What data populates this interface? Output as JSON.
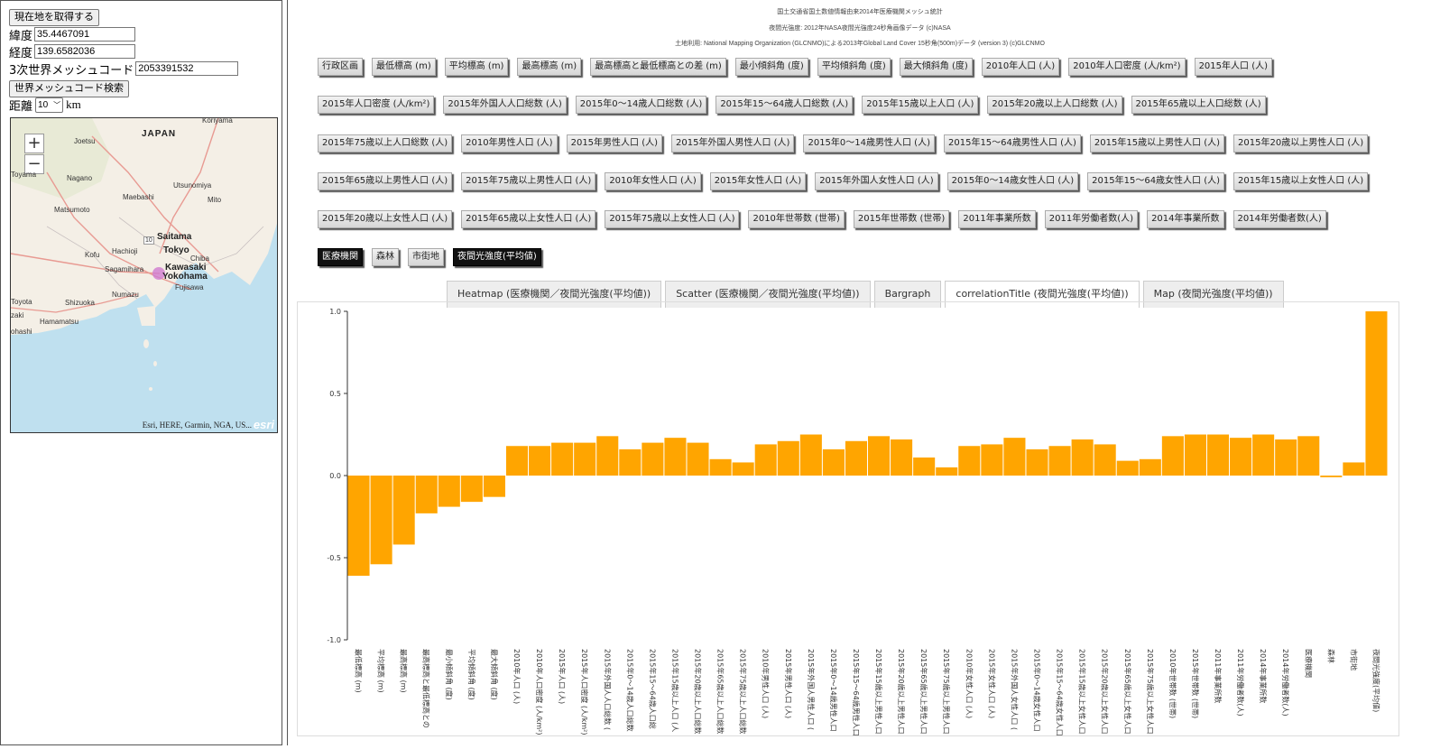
{
  "left": {
    "get_location_label": "現在地を取得する",
    "lat_label": "緯度",
    "lat_value": "35.4467091",
    "lng_label": "経度",
    "lng_value": "139.6582036",
    "mesh_label": "3次世界メッシュコード",
    "mesh_value": "2053391532",
    "search_label": "世界メッシュコード検索",
    "distance_label": "距離",
    "distance_value": "10",
    "distance_unit": "km"
  },
  "map": {
    "zoom_in": "+",
    "zoom_out": "−",
    "attribution": "Esri, HERE, Garmin, NGA, US...",
    "logo": "esri",
    "cities": [
      {
        "name": "Koriyama",
        "big": false
      },
      {
        "name": "JAPAN",
        "big": true
      },
      {
        "name": "Joetsu",
        "big": false
      },
      {
        "name": "Toyama",
        "big": false
      },
      {
        "name": "Nagano",
        "big": false
      },
      {
        "name": "Utsunomiya",
        "big": false
      },
      {
        "name": "Maebashi",
        "big": false
      },
      {
        "name": "Mito",
        "big": false
      },
      {
        "name": "Matsumoto",
        "big": false
      },
      {
        "name": "Saitama",
        "big": true
      },
      {
        "name": "Tokyo",
        "big": true
      },
      {
        "name": "Kofu",
        "big": false
      },
      {
        "name": "Hachioji",
        "big": false
      },
      {
        "name": "Chiba",
        "big": false
      },
      {
        "name": "Sagamihara",
        "big": false
      },
      {
        "name": "Kawasaki",
        "big": true
      },
      {
        "name": "Yokohama",
        "big": true
      },
      {
        "name": "Fujisawa",
        "big": false
      },
      {
        "name": "Toyota",
        "big": false
      },
      {
        "name": "Shizuoka",
        "big": false
      },
      {
        "name": "Numazu",
        "big": false
      },
      {
        "name": "zaki",
        "big": false
      },
      {
        "name": "Hamamatsu",
        "big": false
      },
      {
        "name": "ohashi",
        "big": false
      },
      {
        "name": "10",
        "big": false
      }
    ]
  },
  "credits": [
    "国土交通省国土数値情報由来2014年医療機関メッシュ統計",
    "夜間光強度: 2012年NASA夜間光強度24秒角画像データ (c)NASA",
    "土地利用: National Mapping Organization (GLCNMO)による2013年Global Land Cover 15秒角(500m)データ (version 3) (c)GLCNMO"
  ],
  "button_rows": [
    [
      "行政区画",
      "最低標高 (m)",
      "平均標高 (m)",
      "最高標高 (m)",
      "最高標高と最低標高との差 (m)",
      "最小傾斜角 (度)",
      "平均傾斜角 (度)",
      "最大傾斜角 (度)",
      "2010年人口 (人)",
      "2010年人口密度 (人/km²)",
      "2015年人口 (人)"
    ],
    [
      "2015年人口密度 (人/km²)",
      "2015年外国人人口総数 (人)",
      "2015年0～14歳人口総数 (人)",
      "2015年15～64歳人口総数 (人)",
      "2015年15歳以上人口 (人)",
      "2015年20歳以上人口総数 (人)",
      "2015年65歳以上人口総数 (人)"
    ],
    [
      "2015年75歳以上人口総数 (人)",
      "2010年男性人口 (人)",
      "2015年男性人口 (人)",
      "2015年外国人男性人口 (人)",
      "2015年0～14歳男性人口 (人)",
      "2015年15～64歳男性人口 (人)",
      "2015年15歳以上男性人口 (人)",
      "2015年20歳以上男性人口 (人)"
    ],
    [
      "2015年65歳以上男性人口 (人)",
      "2015年75歳以上男性人口 (人)",
      "2010年女性人口 (人)",
      "2015年女性人口 (人)",
      "2015年外国人女性人口 (人)",
      "2015年0～14歳女性人口 (人)",
      "2015年15～64歳女性人口 (人)",
      "2015年15歳以上女性人口 (人)"
    ],
    [
      "2015年20歳以上女性人口 (人)",
      "2015年65歳以上女性人口 (人)",
      "2015年75歳以上女性人口 (人)",
      "2010年世帯数 (世帯)",
      "2015年世帯数 (世帯)",
      "2011年事業所数",
      "2011年労働者数(人)",
      "2014年事業所数",
      "2014年労働者数(人)"
    ]
  ],
  "selected_buttons": [
    "医療機関",
    "森林",
    "市街地",
    "夜間光強度(平均値)"
  ],
  "selected_state": [
    true,
    false,
    false,
    true
  ],
  "tabs": [
    {
      "label": "Heatmap (医療機関／夜間光強度(平均値))",
      "active": false
    },
    {
      "label": "Scatter (医療機関／夜間光強度(平均値))",
      "active": false
    },
    {
      "label": "Bargraph",
      "active": false
    },
    {
      "label": "correlationTitle (夜間光強度(平均値))",
      "active": true
    },
    {
      "label": "Map (夜間光強度(平均値))",
      "active": false
    }
  ],
  "chart_data": {
    "type": "bar",
    "color": "#ffa500",
    "ylim": [
      -1.0,
      1.0
    ],
    "yticks": [
      "1.0",
      "0.5",
      "0.0",
      "-0.5",
      "-1.0"
    ],
    "categories": [
      "最低標高 (m)",
      "平均標高 (m)",
      "最高標高 (m)",
      "最高標高と最低標高との",
      "最小傾斜角 (度)",
      "平均傾斜角 (度)",
      "最大傾斜角 (度)",
      "2010年人口 (人)",
      "2010年人口密度 (人/km²)",
      "2015年人口 (人)",
      "2015年人口密度 (人/km²)",
      "2015年外国人人口総数 (",
      "2015年0～14歳人口総数",
      "2015年15～64歳人口総",
      "2015年15歳以上人口 (人",
      "2015年20歳以上人口総数",
      "2015年65歳以上人口総数",
      "2015年75歳以上人口総数",
      "2010年男性人口 (人)",
      "2015年男性人口 (人)",
      "2015年外国人男性人口 (",
      "2015年0～14歳男性人口",
      "2015年15～64歳男性人口",
      "2015年15歳以上男性人口",
      "2015年20歳以上男性人口",
      "2015年65歳以上男性人口",
      "2015年75歳以上男性人口",
      "2010年女性人口 (人)",
      "2015年女性人口 (人)",
      "2015年外国人女性人口 (",
      "2015年0～14歳女性人口",
      "2015年15～64歳女性人口",
      "2015年15歳以上女性人口",
      "2015年20歳以上女性人口",
      "2015年65歳以上女性人口",
      "2015年75歳以上女性人口",
      "2010年世帯数 (世帯)",
      "2015年世帯数 (世帯)",
      "2011年事業所数",
      "2011年労働者数(人)",
      "2014年事業所数",
      "2014年労働者数(人)",
      "医療機関",
      "森林",
      "市街地",
      "夜間光強度(平均値)"
    ],
    "values": [
      -0.61,
      -0.54,
      -0.42,
      -0.23,
      -0.19,
      -0.16,
      -0.13,
      0.18,
      0.18,
      0.2,
      0.2,
      0.24,
      0.16,
      0.2,
      0.23,
      0.2,
      0.1,
      0.08,
      0.19,
      0.21,
      0.25,
      0.16,
      0.21,
      0.24,
      0.22,
      0.11,
      0.05,
      0.18,
      0.19,
      0.23,
      0.16,
      0.18,
      0.22,
      0.19,
      0.09,
      0.1,
      0.24,
      0.25,
      0.25,
      0.23,
      0.25,
      0.22,
      0.24,
      -0.01,
      0.08,
      1.0
    ]
  }
}
